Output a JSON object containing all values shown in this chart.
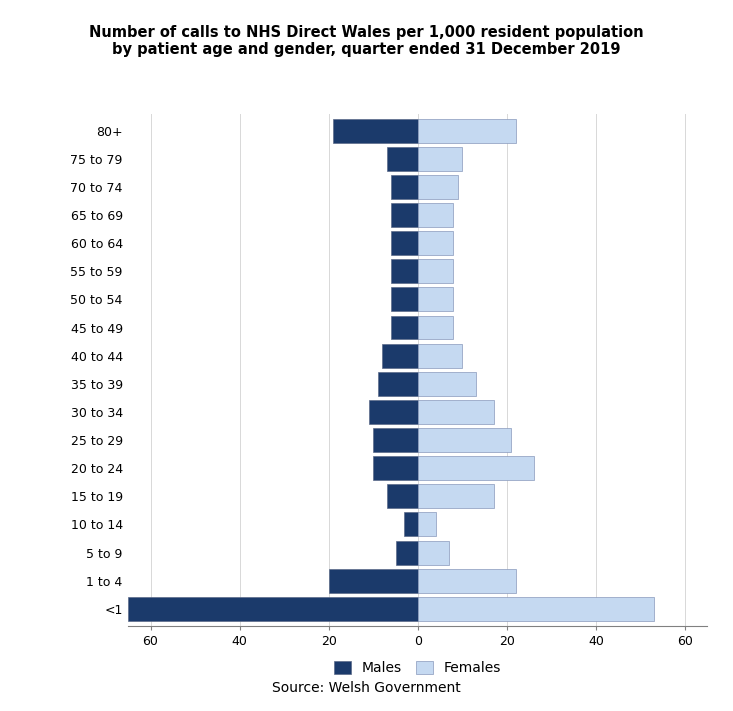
{
  "age_groups": [
    "<1",
    "1 to 4",
    "5 to 9",
    "10 to 14",
    "15 to 19",
    "20 to 24",
    "25 to 29",
    "30 to 34",
    "35 to 39",
    "40 to 44",
    "45 to 49",
    "50 to 54",
    "55 to 59",
    "60 to 64",
    "65 to 69",
    "70 to 74",
    "75 to 79",
    "80+"
  ],
  "males": [
    65,
    20,
    5,
    3,
    7,
    10,
    10,
    11,
    9,
    8,
    6,
    6,
    6,
    6,
    6,
    6,
    7,
    19
  ],
  "females": [
    53,
    22,
    7,
    4,
    17,
    26,
    21,
    17,
    13,
    10,
    8,
    8,
    8,
    8,
    8,
    9,
    10,
    22
  ],
  "male_color": "#1B3A6B",
  "female_color": "#C5D9F1",
  "male_edgecolor": "#5C6B8A",
  "female_edgecolor": "#8899BB",
  "xlim": 65,
  "xticks": [
    -60,
    -40,
    -20,
    0,
    20,
    40,
    60
  ],
  "xticklabels": [
    "60",
    "40",
    "20",
    "0",
    "20",
    "40",
    "60"
  ],
  "title_line1": "Number of calls to NHS Direct Wales per 1,000 resident population",
  "title_line2": "by patient age and gender, quarter ended 31 December 2019",
  "source": "Source: Welsh Government",
  "legend_males": "Males",
  "legend_females": "Females",
  "bar_height": 0.85,
  "background_color": "#FFFFFF",
  "grid_color": "#D8D8D8",
  "spine_color": "#808080"
}
